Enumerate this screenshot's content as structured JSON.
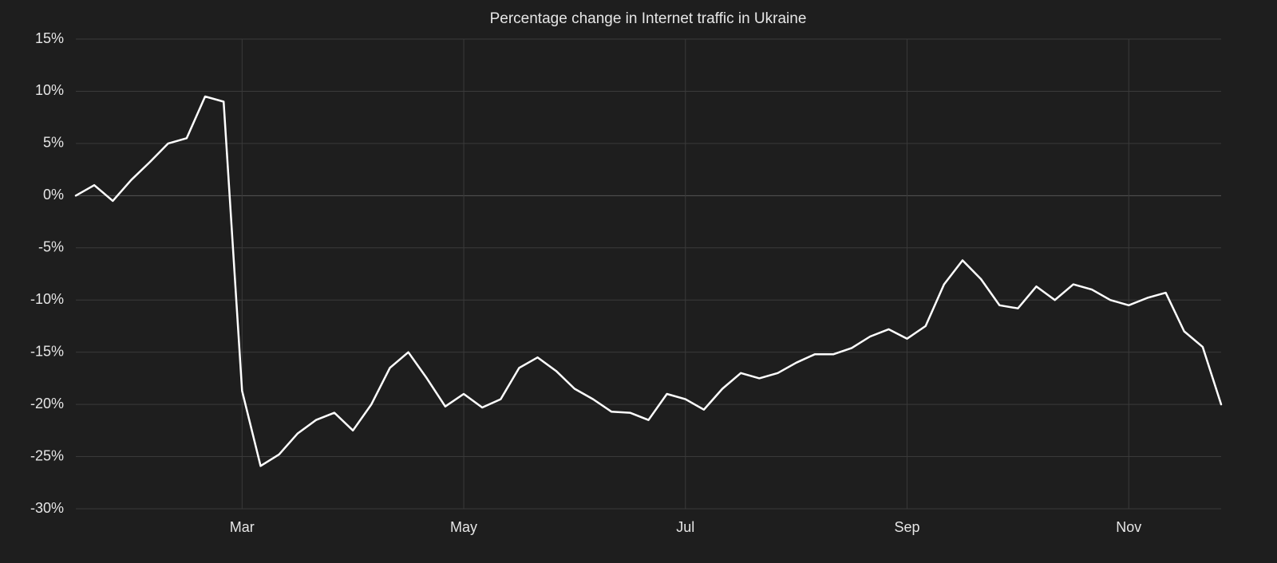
{
  "chart_data": {
    "type": "line",
    "title": "Percentage change in Internet traffic in Ukraine",
    "categories": [
      null,
      null,
      null,
      null,
      null,
      null,
      null,
      null,
      null,
      "Mar",
      null,
      null,
      null,
      null,
      null,
      null,
      null,
      null,
      null,
      null,
      null,
      "May",
      null,
      null,
      null,
      null,
      null,
      null,
      null,
      null,
      null,
      null,
      null,
      "Jul",
      null,
      null,
      null,
      null,
      null,
      null,
      null,
      null,
      null,
      null,
      null,
      "Sep",
      null,
      null,
      null,
      null,
      null,
      null,
      null,
      null,
      null,
      null,
      null,
      "Nov",
      null,
      null,
      null,
      null,
      null
    ],
    "values": [
      0,
      1,
      -0.5,
      1.5,
      3.2,
      5,
      5.5,
      9.5,
      9,
      -18.7,
      -25.9,
      -24.8,
      -22.8,
      -21.5,
      -20.8,
      -22.5,
      -20,
      -16.5,
      -15,
      -17.5,
      -20.2,
      -19,
      -20.3,
      -19.5,
      -16.5,
      -15.5,
      -16.8,
      -18.5,
      -19.5,
      -20.7,
      -20.8,
      -21.5,
      -19,
      -19.5,
      -20.5,
      -18.5,
      -17,
      -17.5,
      -17,
      -16,
      -15.2,
      -15.2,
      -14.6,
      -13.5,
      -12.8,
      -13.7,
      -12.5,
      -8.5,
      -6.2,
      -8,
      -10.5,
      -10.8,
      -8.7,
      -10,
      -8.5,
      -9,
      -10,
      -10.5,
      -9.8,
      -9.3,
      -13,
      -14.5,
      -20
    ],
    "color": "#ffffff",
    "ylim": [
      -30,
      15
    ],
    "yticks": [
      {
        "value": -30,
        "label": "-30%"
      },
      {
        "value": -25,
        "label": "-25%"
      },
      {
        "value": -20,
        "label": "-20%"
      },
      {
        "value": -15,
        "label": "-15%"
      },
      {
        "value": -10,
        "label": "-10%"
      },
      {
        "value": -5,
        "label": "-5%"
      },
      {
        "value": 0,
        "label": "0%"
      },
      {
        "value": 5,
        "label": "5%"
      },
      {
        "value": 10,
        "label": "10%"
      },
      {
        "value": 15,
        "label": "15%"
      }
    ],
    "grid": true
  }
}
